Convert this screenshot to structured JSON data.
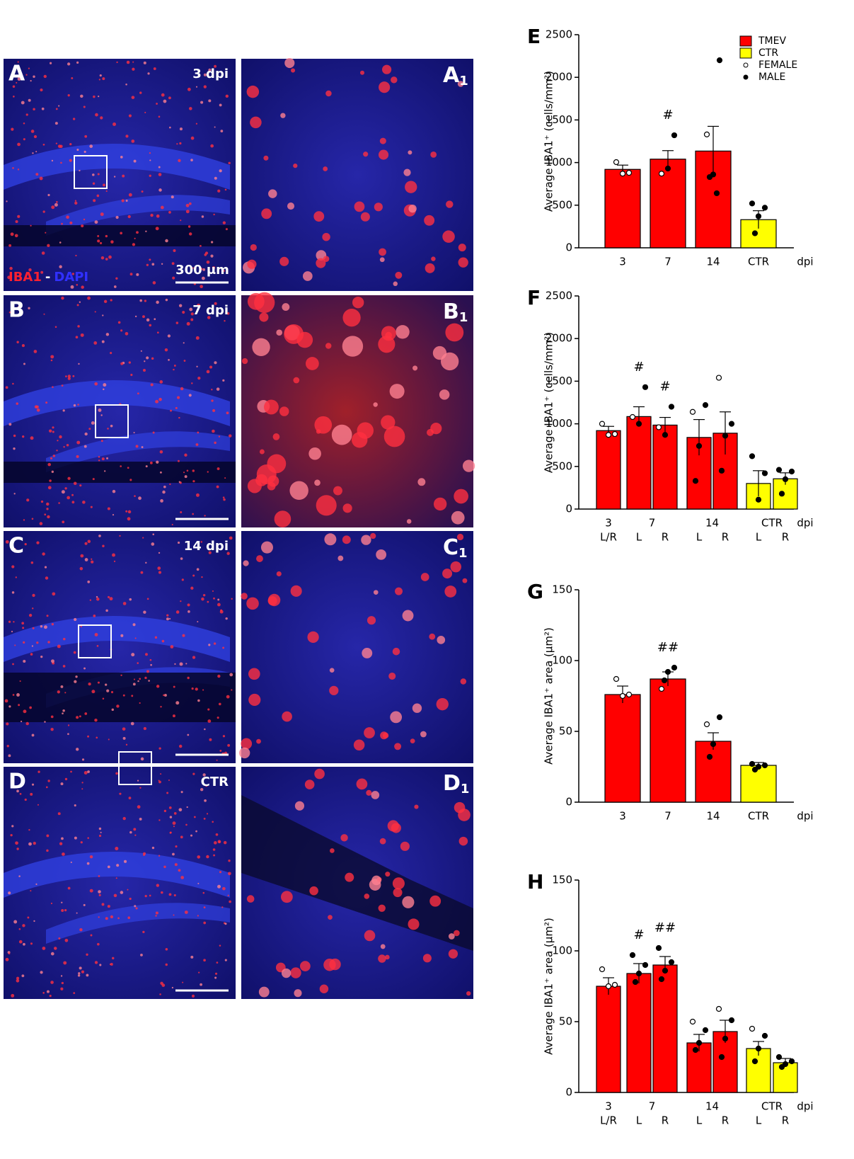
{
  "panels": [
    {
      "label": "A",
      "time": "3 dpi",
      "sub": "A",
      "subscript": "1"
    },
    {
      "label": "B",
      "time": "7 dpi",
      "sub": "B",
      "subscript": "1"
    },
    {
      "label": "C",
      "time": "14 dpi",
      "sub": "C",
      "subscript": "1"
    },
    {
      "label": "D",
      "time": "CTR",
      "sub": "D",
      "subscript": "1"
    }
  ],
  "stain": [
    "IBA1",
    "-",
    "DAPI"
  ],
  "scale_bar": "300 μm",
  "chart_data": [
    {
      "type": "bar",
      "label": "E",
      "ylabel": "Average IBA1⁺ (cells/mm²)",
      "xlabel": "dpi",
      "categories": [
        "3",
        "7",
        "14",
        "CTR"
      ],
      "values": [
        920,
        1040,
        1135,
        330
      ],
      "errors": [
        50,
        100,
        290,
        105
      ],
      "colors": [
        "#ff0000",
        "#ff0000",
        "#ff0000",
        "#ffff00"
      ],
      "female": [
        [
          1005,
          880,
          870
        ],
        [
          870
        ],
        [
          1330
        ],
        []
      ],
      "male": [
        [],
        [
          1320,
          930
        ],
        [
          2200,
          860,
          830,
          640
        ],
        [
          520,
          470,
          370,
          170
        ]
      ],
      "annotations": [
        {
          "text": "#",
          "bar": 1
        }
      ],
      "ylim": [
        0,
        2500
      ],
      "yticks": [
        0,
        500,
        1000,
        1500,
        2000,
        2500
      ],
      "legend": [
        {
          "name": "TMEV",
          "color": "#ff0000"
        },
        {
          "name": "CTR",
          "color": "#ffff00"
        }
      ],
      "point_legend": [
        "FEMALE",
        "MALE"
      ]
    },
    {
      "type": "bar",
      "label": "F",
      "ylabel": "Average IBA1⁺ (cells/mm²)",
      "xlabel": "dpi",
      "groups": [
        "3",
        "7",
        "14",
        "CTR"
      ],
      "categories": [
        "L/R",
        "L",
        "R",
        "L",
        "R",
        "L",
        "R"
      ],
      "values": [
        920,
        1085,
        985,
        840,
        890,
        300,
        355
      ],
      "errors": [
        50,
        115,
        90,
        210,
        250,
        150,
        70
      ],
      "colors": [
        "#ff0000",
        "#ff0000",
        "#ff0000",
        "#ff0000",
        "#ff0000",
        "#ffff00",
        "#ffff00"
      ],
      "female": [
        [
          1000,
          880,
          870
        ],
        [
          1080
        ],
        [
          960
        ],
        [
          1140
        ],
        [
          1540
        ],
        [],
        []
      ],
      "male": [
        [],
        [
          1430,
          1000
        ],
        [
          1200,
          870
        ],
        [
          1220,
          740,
          330
        ],
        [
          1000,
          860,
          450
        ],
        [
          620,
          420,
          110
        ],
        [
          460,
          440,
          350,
          180
        ]
      ],
      "annotations": [
        {
          "text": "#",
          "bar": 1
        },
        {
          "text": "#",
          "bar": 2
        }
      ],
      "ylim": [
        0,
        2500
      ],
      "yticks": [
        0,
        500,
        1000,
        1500,
        2000,
        2500
      ]
    },
    {
      "type": "bar",
      "label": "G",
      "ylabel": "Average IBA1⁺ area (µm²)",
      "xlabel": "dpi",
      "categories": [
        "3",
        "7",
        "14",
        "CTR"
      ],
      "values": [
        76,
        87,
        43,
        26
      ],
      "errors": [
        6,
        5,
        6,
        2
      ],
      "colors": [
        "#ff0000",
        "#ff0000",
        "#ff0000",
        "#ffff00"
      ],
      "female": [
        [
          87,
          76,
          75
        ],
        [
          80
        ],
        [
          55
        ],
        []
      ],
      "male": [
        [],
        [
          95,
          92,
          86
        ],
        [
          60,
          41,
          32
        ],
        [
          27,
          26,
          25,
          23
        ]
      ],
      "annotations": [
        {
          "text": "##",
          "bar": 1
        }
      ],
      "ylim": [
        0,
        150
      ],
      "yticks": [
        0,
        50,
        100,
        150
      ]
    },
    {
      "type": "bar",
      "label": "H",
      "ylabel": "Average IBA1⁺ area (µm²)",
      "xlabel": "dpi",
      "groups": [
        "3",
        "7",
        "14",
        "CTR"
      ],
      "categories": [
        "L/R",
        "L",
        "R",
        "L",
        "R",
        "L",
        "R"
      ],
      "values": [
        75,
        84,
        90,
        35,
        43,
        31,
        21
      ],
      "errors": [
        6,
        7,
        6,
        6,
        8,
        5,
        3
      ],
      "colors": [
        "#ff0000",
        "#ff0000",
        "#ff0000",
        "#ff0000",
        "#ff0000",
        "#ffff00",
        "#ffff00"
      ],
      "female": [
        [
          87,
          76,
          75
        ],
        [],
        [],
        [
          50
        ],
        [
          59
        ],
        [
          45
        ],
        []
      ],
      "male": [
        [],
        [
          97,
          90,
          84,
          78
        ],
        [
          102,
          92,
          86,
          80
        ],
        [
          44,
          35,
          30
        ],
        [
          51,
          38,
          25
        ],
        [
          40,
          31,
          22
        ],
        [
          25,
          22,
          20,
          18
        ]
      ],
      "annotations": [
        {
          "text": "#",
          "bar": 1
        },
        {
          "text": "##",
          "bar": 2
        }
      ],
      "ylim": [
        0,
        150
      ],
      "yticks": [
        0,
        50,
        100,
        150
      ]
    }
  ]
}
